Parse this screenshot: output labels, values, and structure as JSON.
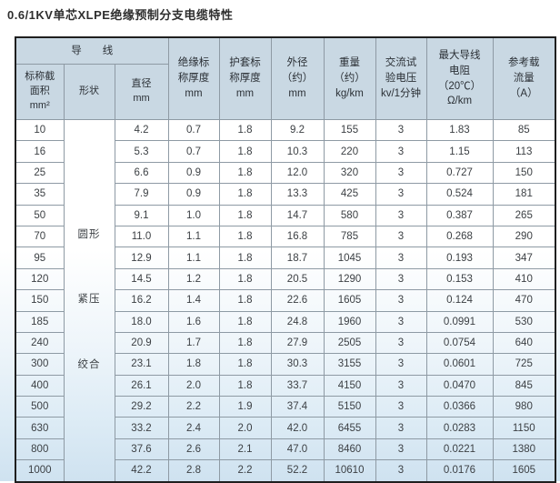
{
  "page": {
    "title": "0.6/1KV单芯XLPE绝缘预制分支电缆特性"
  },
  "colors": {
    "header_bg": "#c9d8e3",
    "outer_border": "#1f1f1f",
    "grid_line": "#8e9aa4",
    "bottom_tint": "#cfe2f0"
  },
  "table": {
    "group_header": "导　　线",
    "columns": [
      {
        "key": "size",
        "label": "标称截\n面积\nmm²"
      },
      {
        "key": "shape",
        "label": "形状"
      },
      {
        "key": "diameter",
        "label": "直径\nmm"
      },
      {
        "key": "insulation",
        "label": "绝缘标\n称厚度\nmm"
      },
      {
        "key": "sheath",
        "label": "护套标\n称厚度\nmm"
      },
      {
        "key": "od",
        "label": "外径\n（约）\nmm"
      },
      {
        "key": "weight",
        "label": "重量\n（约）\nkg/km"
      },
      {
        "key": "test-voltage",
        "label": "交流试\n验电压\nkv/1分钟"
      },
      {
        "key": "resistance",
        "label": "最大导线\n电阻\n（20℃）\nΩ/km"
      },
      {
        "key": "ampacity",
        "label": "参考载\n流量\n（A）"
      }
    ],
    "shape_labels": [
      "圆形",
      "紧压",
      "绞合"
    ],
    "rows": [
      [
        "10",
        "4.2",
        "0.7",
        "1.8",
        "9.2",
        "155",
        "3",
        "1.83",
        "85"
      ],
      [
        "16",
        "5.3",
        "0.7",
        "1.8",
        "10.3",
        "220",
        "3",
        "1.15",
        "113"
      ],
      [
        "25",
        "6.6",
        "0.9",
        "1.8",
        "12.0",
        "320",
        "3",
        "0.727",
        "150"
      ],
      [
        "35",
        "7.9",
        "0.9",
        "1.8",
        "13.3",
        "425",
        "3",
        "0.524",
        "181"
      ],
      [
        "50",
        "9.1",
        "1.0",
        "1.8",
        "14.7",
        "580",
        "3",
        "0.387",
        "265"
      ],
      [
        "70",
        "11.0",
        "1.1",
        "1.8",
        "16.8",
        "785",
        "3",
        "0.268",
        "290"
      ],
      [
        "95",
        "12.9",
        "1.1",
        "1.8",
        "18.7",
        "1045",
        "3",
        "0.193",
        "347"
      ],
      [
        "120",
        "14.5",
        "1.2",
        "1.8",
        "20.5",
        "1290",
        "3",
        "0.153",
        "410"
      ],
      [
        "150",
        "16.2",
        "1.4",
        "1.8",
        "22.6",
        "1605",
        "3",
        "0.124",
        "470"
      ],
      [
        "185",
        "18.0",
        "1.6",
        "1.8",
        "24.8",
        "1960",
        "3",
        "0.0991",
        "530"
      ],
      [
        "240",
        "20.9",
        "1.7",
        "1.8",
        "27.9",
        "2505",
        "3",
        "0.0754",
        "640"
      ],
      [
        "300",
        "23.1",
        "1.8",
        "1.8",
        "30.3",
        "3155",
        "3",
        "0.0601",
        "725"
      ],
      [
        "400",
        "26.1",
        "2.0",
        "1.8",
        "33.7",
        "4150",
        "3",
        "0.0470",
        "845"
      ],
      [
        "500",
        "29.2",
        "2.2",
        "1.9",
        "37.4",
        "5150",
        "3",
        "0.0366",
        "980"
      ],
      [
        "630",
        "33.2",
        "2.4",
        "2.0",
        "42.0",
        "6455",
        "3",
        "0.0283",
        "1150"
      ],
      [
        "800",
        "37.6",
        "2.6",
        "2.1",
        "47.0",
        "8460",
        "3",
        "0.0221",
        "1380"
      ],
      [
        "1000",
        "42.2",
        "2.8",
        "2.2",
        "52.2",
        "10610",
        "3",
        "0.0176",
        "1605"
      ]
    ]
  }
}
